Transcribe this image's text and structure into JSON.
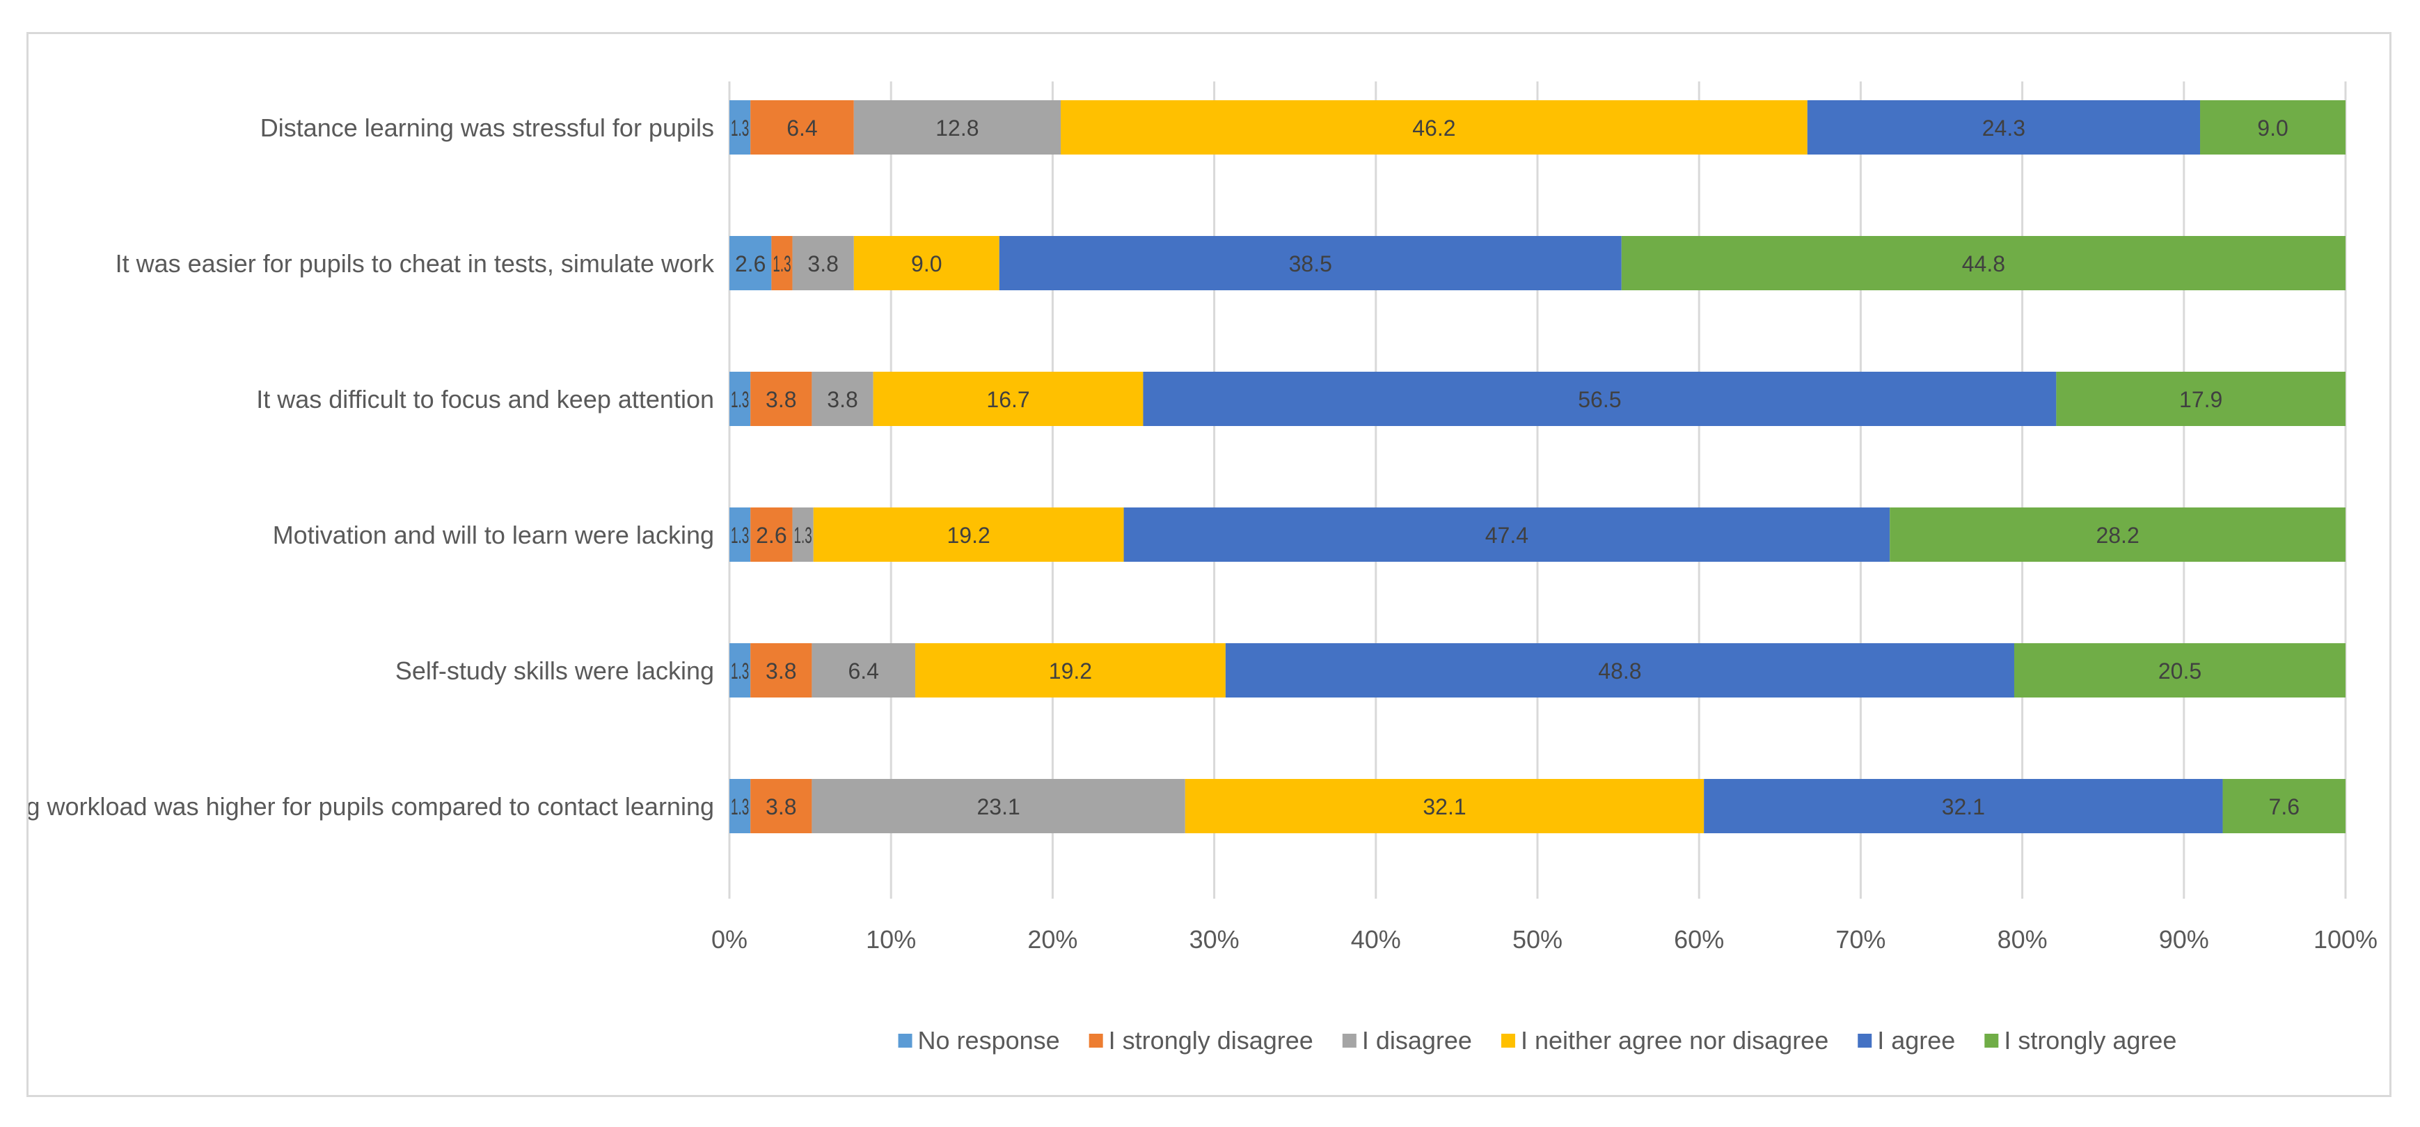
{
  "chart_data": {
    "type": "bar",
    "orientation": "horizontal",
    "stacked": "percent",
    "categories": [
      "Distance learning was stressful for pupils",
      "It was easier for pupils to cheat in tests, simulate work",
      "It was difficult to focus and keep attention",
      "Motivation and will to learn were lacking",
      "Self-study skills were lacking",
      "The learning workload was higher for pupils compared to contact learning"
    ],
    "series": [
      {
        "name": "No response",
        "color": "#5b9bd5",
        "values": [
          1.3,
          2.6,
          1.3,
          1.3,
          1.3,
          1.3
        ],
        "labels": [
          "1.3",
          "2.6",
          "1.3",
          "1.3",
          "1.3",
          "1.3"
        ]
      },
      {
        "name": "I strongly disagree",
        "color": "#ed7d31",
        "values": [
          6.4,
          1.3,
          3.8,
          2.6,
          3.8,
          3.8
        ],
        "labels": [
          "6.4",
          "1.3",
          "3.8",
          "2.6",
          "3.8",
          "3.8"
        ]
      },
      {
        "name": "I disagree",
        "color": "#a5a5a5",
        "values": [
          12.8,
          3.8,
          3.8,
          1.3,
          6.4,
          23.1
        ],
        "labels": [
          "12.8",
          "3.8",
          "3.8",
          "1.3",
          "6.4",
          "23.1"
        ]
      },
      {
        "name": "I neither agree nor disagree",
        "color": "#ffc000",
        "values": [
          46.2,
          9.0,
          16.7,
          19.2,
          19.2,
          32.1
        ],
        "labels": [
          "46.2",
          "9.0",
          "16.7",
          "19.2",
          "19.2",
          "32.1"
        ]
      },
      {
        "name": "I agree",
        "color": "#4472c4",
        "values": [
          24.3,
          38.5,
          56.5,
          47.4,
          48.8,
          32.1
        ],
        "labels": [
          "24.3",
          "38.5",
          "56.5",
          "47.4",
          "48.8",
          "32.1"
        ]
      },
      {
        "name": "I strongly agree",
        "color": "#70ad47",
        "values": [
          9.0,
          44.8,
          17.9,
          28.2,
          20.5,
          7.6
        ],
        "labels": [
          "9.0",
          "44.8",
          "17.9",
          "28.2",
          "20.5",
          "7.6"
        ]
      }
    ],
    "x_ticks": [
      "0%",
      "10%",
      "20%",
      "30%",
      "40%",
      "50%",
      "60%",
      "70%",
      "80%",
      "90%",
      "100%"
    ],
    "xlim": [
      0,
      100
    ],
    "grid": true,
    "legend_position": "bottom",
    "title": "",
    "xlabel": "",
    "ylabel": ""
  }
}
